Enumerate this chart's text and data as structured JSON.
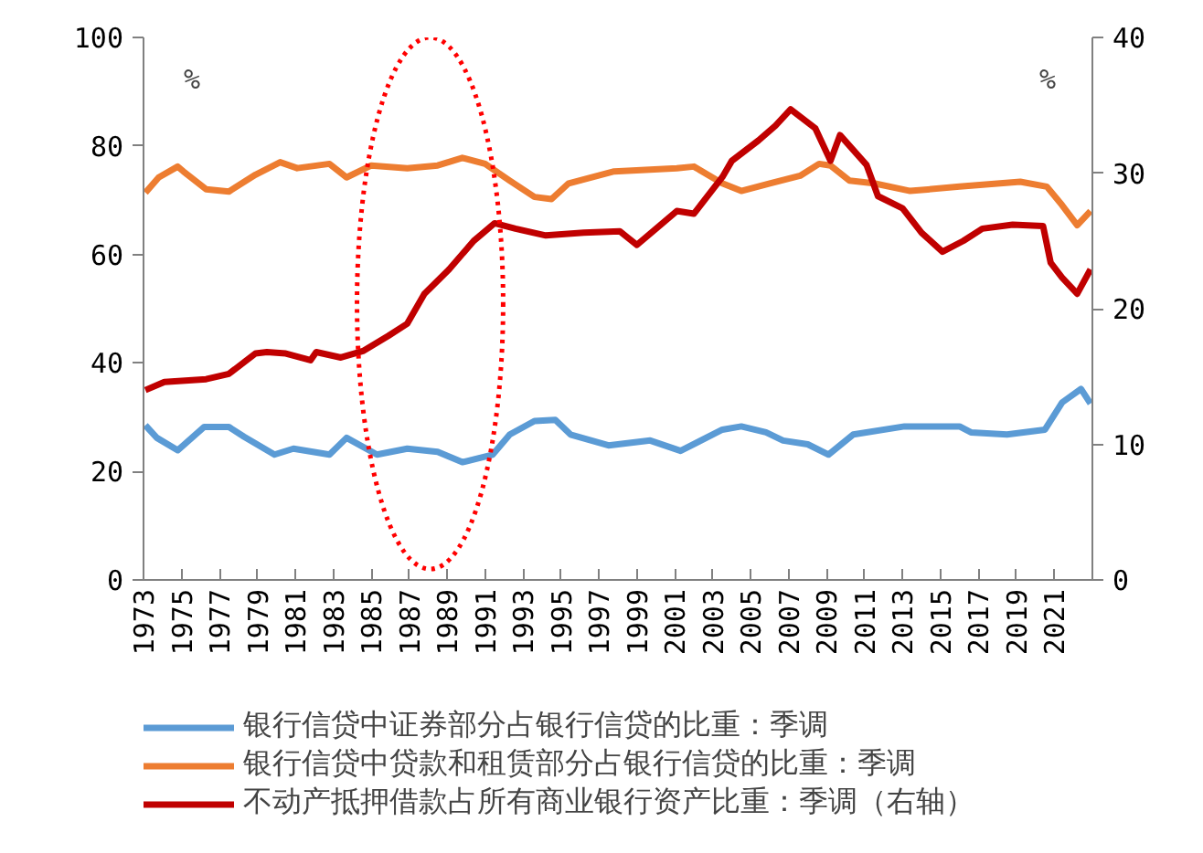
{
  "chart_data": {
    "type": "line",
    "ylabel": "%",
    "y2label": "%",
    "xlim": [
      1973,
      2023
    ],
    "xticks": [
      1973,
      1975,
      1977,
      1979,
      1981,
      1983,
      1985,
      1987,
      1989,
      1991,
      1993,
      1995,
      1997,
      1999,
      2001,
      2003,
      2005,
      2007,
      2009,
      2011,
      2013,
      2015,
      2017,
      2019,
      2021
    ],
    "ylim": [
      0,
      100
    ],
    "yticks": [
      0,
      20,
      40,
      60,
      80,
      100
    ],
    "y2lim": [
      0,
      40
    ],
    "y2ticks": [
      0,
      10,
      20,
      30,
      40
    ],
    "grid": false,
    "legend": "bottom",
    "marker": "none",
    "line_style": "solid",
    "series": [
      {
        "name": "银行信贷中证券部分占银行信贷的比重：季调",
        "color": "#5b9bd5",
        "x": [
          1973.1,
          1973.7,
          1974.8,
          1976.2,
          1977.5,
          1978.3,
          1979.9,
          1980.9,
          1982.8,
          1983.7,
          1985.3,
          1986.9,
          1988.5,
          1989.8,
          1991.4,
          1992.3,
          1993.6,
          1994.7,
          1995.5,
          1997.5,
          1999.7,
          2001.3,
          2003.5,
          2004.5,
          2005.8,
          2006.7,
          2008.0,
          2009.1,
          2010.4,
          2013.1,
          2016.0,
          2016.6,
          2018.5,
          2020.5,
          2021.4,
          2022.4,
          2022.9
        ],
        "values": [
          28.5,
          26.2,
          23.9,
          28.2,
          28.2,
          26.4,
          23.1,
          24.2,
          23.1,
          26.2,
          23.1,
          24.2,
          23.6,
          21.7,
          23.1,
          26.8,
          29.3,
          29.5,
          26.8,
          24.8,
          25.7,
          23.8,
          27.7,
          28.3,
          27.2,
          25.7,
          25.0,
          23.1,
          26.8,
          28.3,
          28.3,
          27.2,
          26.8,
          27.7,
          32.7,
          35.2,
          32.5
        ]
      },
      {
        "name": "银行信贷中贷款和租赁部分占银行信贷的比重：季调",
        "color": "#ed7d31",
        "x": [
          1973.1,
          1973.8,
          1974.8,
          1975.1,
          1976.3,
          1977.5,
          1978.9,
          1980.2,
          1981.1,
          1982.8,
          1983.7,
          1985.0,
          1986.9,
          1988.5,
          1989.8,
          1991.0,
          1992.3,
          1993.6,
          1994.5,
          1995.4,
          1997.8,
          2001.1,
          2002.0,
          2003.5,
          2004.5,
          2006.0,
          2007.6,
          2008.6,
          2009.2,
          2010.2,
          2011.5,
          2013.4,
          2016.0,
          2019.2,
          2020.6,
          2021.4,
          2022.2,
          2022.9
        ],
        "values": [
          71.4,
          74.2,
          76.2,
          75.3,
          72.0,
          71.6,
          74.7,
          77.0,
          75.9,
          76.7,
          74.2,
          76.4,
          75.9,
          76.4,
          77.8,
          76.7,
          73.6,
          70.6,
          70.2,
          73.1,
          75.3,
          75.9,
          76.2,
          73.1,
          71.7,
          73.1,
          74.5,
          76.7,
          76.4,
          73.6,
          73.1,
          71.7,
          72.5,
          73.4,
          72.5,
          69.1,
          65.4,
          68.0
        ]
      },
      {
        "name": "不动产抵押借款占所有商业银行资产比重：季调（右轴）",
        "color": "#c00000",
        "axis": "y2",
        "x": [
          1973.1,
          1974.1,
          1976.3,
          1977.5,
          1978.9,
          1979.5,
          1980.5,
          1981.8,
          1982.1,
          1983.4,
          1984.6,
          1985.9,
          1986.9,
          1987.8,
          1989.1,
          1990.4,
          1991.5,
          1992.6,
          1994.2,
          1996.2,
          1998.1,
          1999.0,
          2001.1,
          2002.0,
          2003.5,
          2004.0,
          2005.4,
          2006.3,
          2007.1,
          2008.4,
          2009.2,
          2009.7,
          2011.1,
          2011.7,
          2013.0,
          2014.0,
          2015.1,
          2016.2,
          2017.2,
          2018.8,
          2020.4,
          2020.8,
          2021.4,
          2022.2,
          2022.9
        ],
        "values": [
          14.0,
          14.6,
          14.8,
          15.2,
          16.7,
          16.8,
          16.7,
          16.2,
          16.8,
          16.4,
          16.9,
          18.0,
          18.9,
          21.1,
          22.9,
          25.0,
          26.3,
          25.9,
          25.4,
          25.6,
          25.7,
          24.7,
          27.2,
          27.0,
          29.7,
          30.9,
          32.4,
          33.5,
          34.7,
          33.3,
          30.9,
          32.8,
          30.6,
          28.3,
          27.4,
          25.6,
          24.2,
          25.0,
          25.9,
          26.2,
          26.1,
          23.4,
          22.3,
          21.1,
          22.9
        ]
      }
    ]
  }
}
